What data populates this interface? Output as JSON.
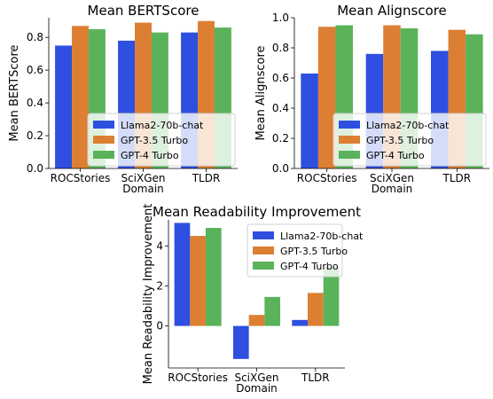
{
  "legend_labels": [
    "Llama2-70b-chat",
    "GPT-3.5 Turbo",
    "GPT-4 Turbo"
  ],
  "colors": [
    "#2e4fe0",
    "#dc7f33",
    "#5ab35a"
  ],
  "chart_data": [
    {
      "type": "bar",
      "title": "Mean BERTScore",
      "ylabel": "Mean BERTScore",
      "categories": [
        [
          "ROCStories"
        ],
        [
          "SciXGen",
          "Domain"
        ],
        [
          "TLDR"
        ]
      ],
      "ylim": [
        0,
        0.92
      ],
      "yticks": [
        "0.0",
        "0.2",
        "0.4",
        "0.6",
        "0.8"
      ],
      "ytick_values": [
        0,
        0.2,
        0.4,
        0.6,
        0.8
      ],
      "series": [
        {
          "name": "Llama2-70b-chat",
          "values": [
            0.75,
            0.78,
            0.83
          ]
        },
        {
          "name": "GPT-3.5 Turbo",
          "values": [
            0.87,
            0.89,
            0.9
          ]
        },
        {
          "name": "GPT-4 Turbo",
          "values": [
            0.85,
            0.83,
            0.86
          ]
        }
      ],
      "legend": "lower-right"
    },
    {
      "type": "bar",
      "title": "Mean Alignscore",
      "ylabel": "Mean Alignscore",
      "categories": [
        [
          "ROCStories"
        ],
        [
          "SciXGen",
          "Domain"
        ],
        [
          "TLDR"
        ]
      ],
      "ylim": [
        0,
        1.0
      ],
      "yticks": [
        "0.0",
        "0.2",
        "0.4",
        "0.6",
        "0.8",
        "1.0"
      ],
      "ytick_values": [
        0,
        0.2,
        0.4,
        0.6,
        0.8,
        1.0
      ],
      "series": [
        {
          "name": "Llama2-70b-chat",
          "values": [
            0.63,
            0.76,
            0.78
          ]
        },
        {
          "name": "GPT-3.5 Turbo",
          "values": [
            0.94,
            0.95,
            0.92
          ]
        },
        {
          "name": "GPT-4 Turbo",
          "values": [
            0.95,
            0.93,
            0.89
          ]
        }
      ],
      "legend": "lower-right"
    },
    {
      "type": "bar",
      "title": "Mean Readability Improvement",
      "ylabel": "Mean Readability Improvement",
      "categories": [
        [
          "ROCStories"
        ],
        [
          "SciXGen",
          "Domain"
        ],
        [
          "TLDR"
        ]
      ],
      "ylim": [
        -2.1,
        5.3
      ],
      "yticks": [
        "0",
        "2",
        "4"
      ],
      "ytick_values": [
        0,
        2,
        4
      ],
      "series": [
        {
          "name": "Llama2-70b-chat",
          "values": [
            5.15,
            -1.65,
            0.3
          ]
        },
        {
          "name": "GPT-3.5 Turbo",
          "values": [
            4.5,
            0.55,
            1.65
          ]
        },
        {
          "name": "GPT-4 Turbo",
          "values": [
            4.9,
            1.45,
            2.95
          ]
        }
      ],
      "legend": "upper-right"
    }
  ]
}
